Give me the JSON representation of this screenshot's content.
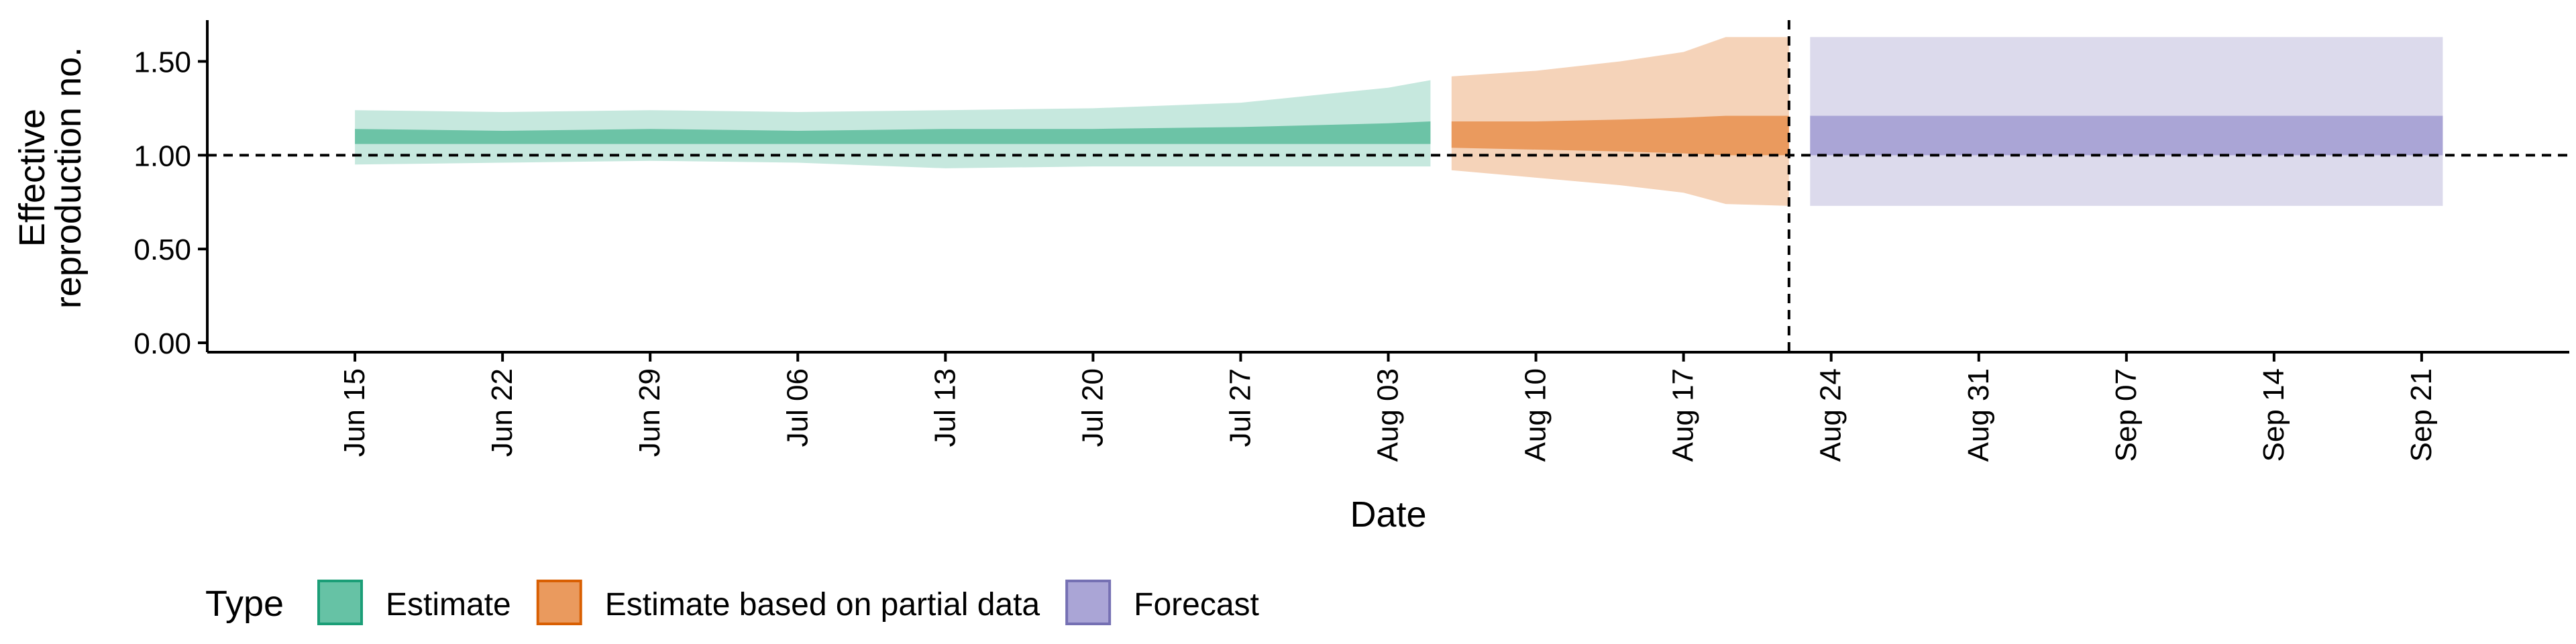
{
  "chart_data": {
    "type": "area",
    "title": "",
    "xlabel": "Date",
    "ylabel_lines": [
      "Effective",
      "reproduction no."
    ],
    "x_domain": [
      "2020-06-08",
      "2020-09-28"
    ],
    "xlim": [
      "2020-06-08",
      "2020-09-28"
    ],
    "ylim": [
      -0.05,
      1.72
    ],
    "yticks": [
      0.0,
      0.5,
      1.0,
      1.5
    ],
    "ytick_labels": [
      "0.00",
      "0.50",
      "1.00",
      "1.50"
    ],
    "xticks": [
      "2020-06-15",
      "2020-06-22",
      "2020-06-29",
      "2020-07-06",
      "2020-07-13",
      "2020-07-20",
      "2020-07-27",
      "2020-08-03",
      "2020-08-10",
      "2020-08-17",
      "2020-08-24",
      "2020-08-31",
      "2020-09-07",
      "2020-09-14",
      "2020-09-21"
    ],
    "xtick_labels": [
      "Jun 15",
      "Jun 22",
      "Jun 29",
      "Jul 06",
      "Jul 13",
      "Jul 20",
      "Jul 27",
      "Aug 03",
      "Aug 10",
      "Aug 17",
      "Aug 24",
      "Aug 31",
      "Sep 07",
      "Sep 14",
      "Sep 21"
    ],
    "reference_lines": {
      "horizontal_y": 1.0,
      "vertical_x": "2020-08-22"
    },
    "legend": {
      "title": "Type",
      "position": "bottom-left",
      "items": [
        {
          "label": "Estimate",
          "fill": "#66c2a5",
          "stroke": "#1b9e77"
        },
        {
          "label": "Estimate based on partial data",
          "fill": "#ea9a5e",
          "stroke": "#d95f02"
        },
        {
          "label": "Forecast",
          "fill": "#aaa5d6",
          "stroke": "#7570b3"
        }
      ]
    },
    "series": [
      {
        "name": "Estimate",
        "outer_color": "#c6e8de",
        "inner_color": "#6cc3a6",
        "points": [
          {
            "x": "2020-06-15",
            "lo90": 0.95,
            "hi90": 1.24,
            "lo50": 1.06,
            "hi50": 1.14
          },
          {
            "x": "2020-06-22",
            "lo90": 0.96,
            "hi90": 1.23,
            "lo50": 1.06,
            "hi50": 1.13
          },
          {
            "x": "2020-06-29",
            "lo90": 0.97,
            "hi90": 1.24,
            "lo50": 1.06,
            "hi50": 1.14
          },
          {
            "x": "2020-07-06",
            "lo90": 0.96,
            "hi90": 1.23,
            "lo50": 1.06,
            "hi50": 1.13
          },
          {
            "x": "2020-07-13",
            "lo90": 0.93,
            "hi90": 1.24,
            "lo50": 1.06,
            "hi50": 1.14
          },
          {
            "x": "2020-07-20",
            "lo90": 0.94,
            "hi90": 1.25,
            "lo50": 1.06,
            "hi50": 1.14
          },
          {
            "x": "2020-07-27",
            "lo90": 0.94,
            "hi90": 1.28,
            "lo50": 1.06,
            "hi50": 1.15
          },
          {
            "x": "2020-08-03",
            "lo90": 0.94,
            "hi90": 1.36,
            "lo50": 1.06,
            "hi50": 1.17
          },
          {
            "x": "2020-08-05",
            "lo90": 0.94,
            "hi90": 1.4,
            "lo50": 1.06,
            "hi50": 1.18
          }
        ]
      },
      {
        "name": "Estimate based on partial data",
        "outer_color": "#f5d3b9",
        "inner_color": "#ea9a5e",
        "points": [
          {
            "x": "2020-08-06",
            "lo90": 0.92,
            "hi90": 1.42,
            "lo50": 1.04,
            "hi50": 1.18
          },
          {
            "x": "2020-08-10",
            "lo90": 0.88,
            "hi90": 1.45,
            "lo50": 1.03,
            "hi50": 1.18
          },
          {
            "x": "2020-08-14",
            "lo90": 0.84,
            "hi90": 1.5,
            "lo50": 1.02,
            "hi50": 1.19
          },
          {
            "x": "2020-08-17",
            "lo90": 0.8,
            "hi90": 1.55,
            "lo50": 1.01,
            "hi50": 1.2
          },
          {
            "x": "2020-08-19",
            "lo90": 0.74,
            "hi90": 1.63,
            "lo50": 1.0,
            "hi50": 1.21
          },
          {
            "x": "2020-08-22",
            "lo90": 0.73,
            "hi90": 1.63,
            "lo50": 1.0,
            "hi50": 1.21
          }
        ]
      },
      {
        "name": "Forecast",
        "outer_color": "#dcdaec",
        "inner_color": "#aaa5d6",
        "points": [
          {
            "x": "2020-08-23",
            "lo90": 0.73,
            "hi90": 1.63,
            "lo50": 1.0,
            "hi50": 1.21
          },
          {
            "x": "2020-09-22",
            "lo90": 0.73,
            "hi90": 1.63,
            "lo50": 1.0,
            "hi50": 1.21
          }
        ]
      }
    ]
  }
}
